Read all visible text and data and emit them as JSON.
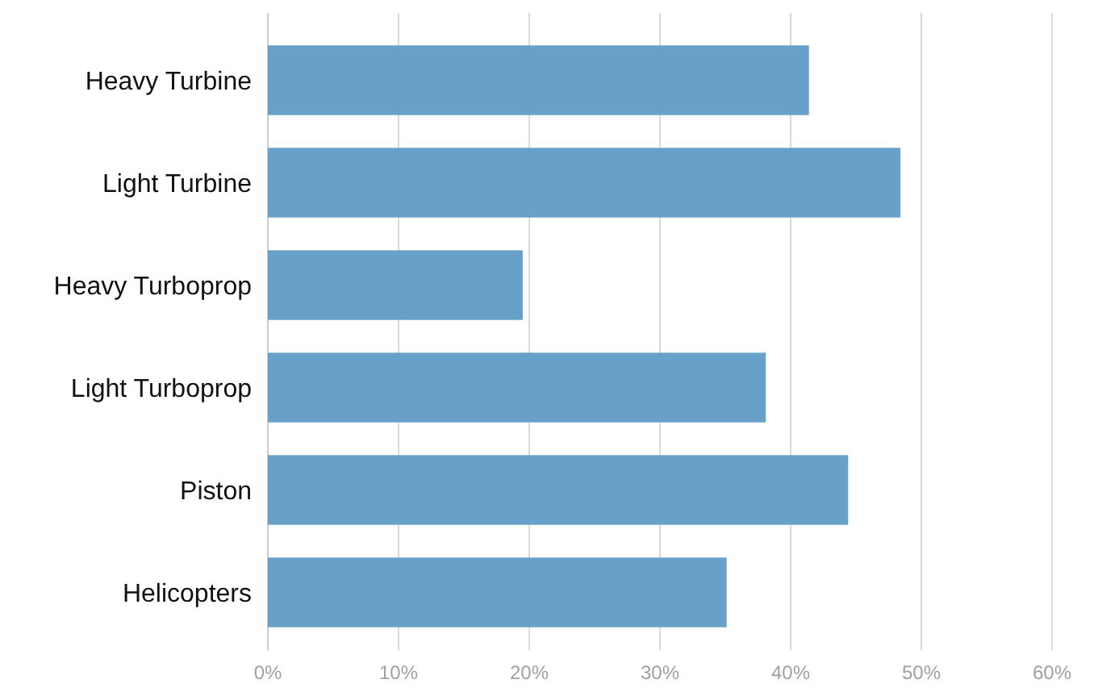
{
  "chart_data": {
    "type": "bar",
    "orientation": "horizontal",
    "categories": [
      "Heavy Turbine",
      "Light Turbine",
      "Heavy Turboprop",
      "Light Turboprop",
      "Piston",
      "Helicopters"
    ],
    "values": [
      41.4,
      48.4,
      19.5,
      38.1,
      44.4,
      35.1
    ],
    "color": "#67a0c8",
    "xlim": [
      0,
      60
    ],
    "xticks": [
      {
        "value": 0,
        "label": "0%"
      },
      {
        "value": 10,
        "label": "10%"
      },
      {
        "value": 20,
        "label": "20%"
      },
      {
        "value": 30,
        "label": "30%"
      },
      {
        "value": 40,
        "label": "40%"
      },
      {
        "value": 50,
        "label": "50%"
      },
      {
        "value": 60,
        "label": "60%"
      }
    ],
    "grid": "x"
  }
}
